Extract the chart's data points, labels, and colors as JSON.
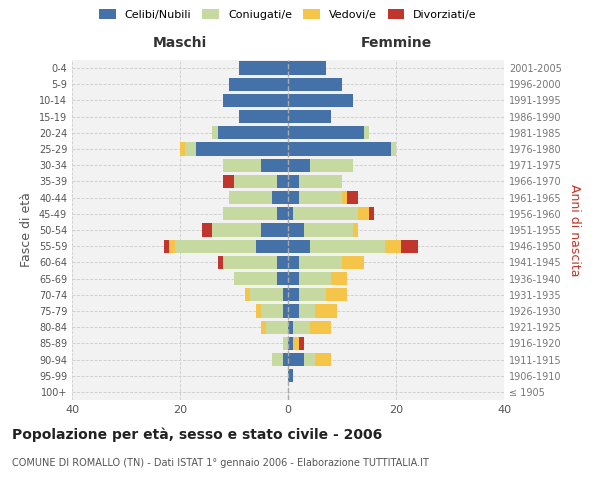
{
  "age_groups": [
    "100+",
    "95-99",
    "90-94",
    "85-89",
    "80-84",
    "75-79",
    "70-74",
    "65-69",
    "60-64",
    "55-59",
    "50-54",
    "45-49",
    "40-44",
    "35-39",
    "30-34",
    "25-29",
    "20-24",
    "15-19",
    "10-14",
    "5-9",
    "0-4"
  ],
  "birth_years": [
    "≤ 1905",
    "1906-1910",
    "1911-1915",
    "1916-1920",
    "1921-1925",
    "1926-1930",
    "1931-1935",
    "1936-1940",
    "1941-1945",
    "1946-1950",
    "1951-1955",
    "1956-1960",
    "1961-1965",
    "1966-1970",
    "1971-1975",
    "1976-1980",
    "1981-1985",
    "1986-1990",
    "1991-1995",
    "1996-2000",
    "2001-2005"
  ],
  "maschi": {
    "celibi": [
      0,
      0,
      1,
      0,
      0,
      1,
      1,
      2,
      2,
      6,
      5,
      2,
      3,
      2,
      5,
      17,
      13,
      9,
      12,
      11,
      9
    ],
    "coniugati": [
      0,
      0,
      2,
      1,
      4,
      4,
      6,
      8,
      10,
      15,
      9,
      10,
      8,
      8,
      7,
      2,
      1,
      0,
      0,
      0,
      0
    ],
    "vedovi": [
      0,
      0,
      0,
      0,
      1,
      1,
      1,
      0,
      0,
      1,
      0,
      0,
      0,
      0,
      0,
      1,
      0,
      0,
      0,
      0,
      0
    ],
    "divorziati": [
      0,
      0,
      0,
      0,
      0,
      0,
      0,
      0,
      1,
      1,
      2,
      0,
      0,
      2,
      0,
      0,
      0,
      0,
      0,
      0,
      0
    ]
  },
  "femmine": {
    "nubili": [
      0,
      1,
      3,
      1,
      1,
      2,
      2,
      2,
      2,
      4,
      3,
      1,
      2,
      2,
      4,
      19,
      14,
      8,
      12,
      10,
      7
    ],
    "coniugate": [
      0,
      0,
      2,
      0,
      3,
      3,
      5,
      6,
      8,
      14,
      9,
      12,
      8,
      8,
      8,
      1,
      1,
      0,
      0,
      0,
      0
    ],
    "vedove": [
      0,
      0,
      3,
      1,
      4,
      4,
      4,
      3,
      4,
      3,
      1,
      2,
      1,
      0,
      0,
      0,
      0,
      0,
      0,
      0,
      0
    ],
    "divorziate": [
      0,
      0,
      0,
      1,
      0,
      0,
      0,
      0,
      0,
      3,
      0,
      1,
      2,
      0,
      0,
      0,
      0,
      0,
      0,
      0,
      0
    ]
  },
  "colors": {
    "celibi_nubili": "#4472a8",
    "coniugati": "#c5d9a0",
    "vedovi": "#f5c54a",
    "divorziati": "#c0362c"
  },
  "xlim": 40,
  "title": "Popolazione per età, sesso e stato civile - 2006",
  "subtitle": "COMUNE DI ROMALLO (TN) - Dati ISTAT 1° gennaio 2006 - Elaborazione TUTTITALIA.IT",
  "ylabel_left": "Fasce di età",
  "ylabel_right": "Anni di nascita",
  "xlabel_maschi": "Maschi",
  "xlabel_femmine": "Femmine",
  "bg_color": "#ffffff",
  "grid_color": "#cccccc",
  "fig_width": 6.0,
  "fig_height": 5.0,
  "fig_dpi": 100
}
